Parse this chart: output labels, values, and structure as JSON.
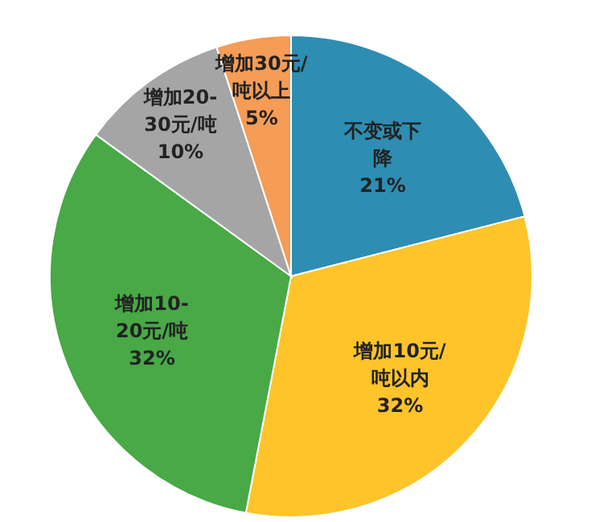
{
  "chart_data": {
    "type": "pie",
    "categories": [
      "不变或下降",
      "增加10元/吨以内",
      "增加10-20元/吨",
      "增加20-30元/吨",
      "增加30元/吨以上"
    ],
    "values": [
      21,
      32,
      32,
      10,
      5
    ],
    "colors": [
      "#2e8db3",
      "#fec429",
      "#48a946",
      "#a5a5a5",
      "#f59c56"
    ],
    "value_labels": [
      "21%",
      "32%",
      "32%",
      "10%",
      "5%"
    ]
  }
}
